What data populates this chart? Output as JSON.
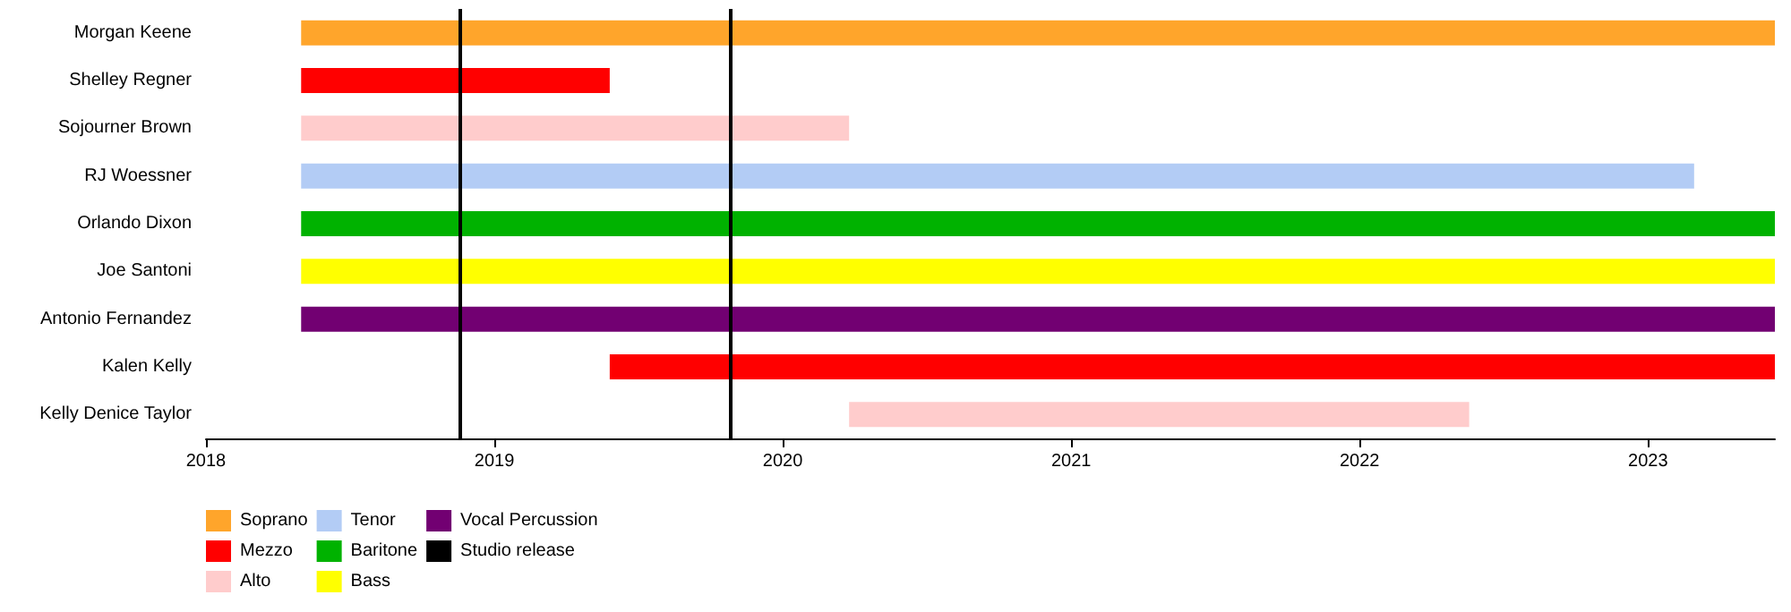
{
  "chart_data": {
    "type": "bar",
    "orientation": "horizontal",
    "categories": [
      "Morgan Keene",
      "Shelley Regner",
      "Sojourner Brown",
      "RJ Woessner",
      "Orlando Dixon",
      "Joe Santoni",
      "Antonio Fernandez",
      "Kalen Kelly",
      "Kelly Denice Taylor"
    ],
    "series": [
      {
        "name": "Soprano",
        "color": "#ffa52b",
        "values": [
          5.11,
          null,
          null,
          null,
          null,
          null,
          null,
          null,
          null
        ],
        "base": [
          2018.33,
          null,
          null,
          null,
          null,
          null,
          null,
          null,
          null
        ]
      },
      {
        "name": "Mezzo",
        "color": "#ff0000",
        "values": [
          null,
          1.07,
          null,
          null,
          null,
          null,
          null,
          4.04,
          null
        ],
        "base": [
          null,
          2018.33,
          null,
          null,
          null,
          null,
          null,
          2019.4,
          null
        ]
      },
      {
        "name": "Alto",
        "color": "#ffcccc",
        "values": [
          null,
          null,
          1.9,
          null,
          null,
          null,
          null,
          null,
          2.15
        ],
        "base": [
          null,
          null,
          2018.33,
          null,
          null,
          null,
          null,
          null,
          2020.23
        ]
      },
      {
        "name": "Tenor",
        "color": "#b3ccf5",
        "values": [
          null,
          null,
          null,
          4.83,
          null,
          null,
          null,
          null,
          null
        ],
        "base": [
          null,
          null,
          null,
          2018.33,
          null,
          null,
          null,
          null,
          null
        ]
      },
      {
        "name": "Baritone",
        "color": "#00b200",
        "values": [
          null,
          null,
          null,
          null,
          5.11,
          null,
          null,
          null,
          null
        ],
        "base": [
          null,
          null,
          null,
          null,
          2018.33,
          null,
          null,
          null,
          null
        ]
      },
      {
        "name": "Bass",
        "color": "#ffff00",
        "values": [
          null,
          null,
          null,
          null,
          null,
          5.11,
          null,
          null,
          null
        ],
        "base": [
          null,
          null,
          null,
          null,
          null,
          2018.33,
          null,
          null,
          null
        ]
      },
      {
        "name": "Vocal Percussion",
        "color": "#720072",
        "values": [
          null,
          null,
          null,
          null,
          null,
          null,
          5.11,
          null,
          null
        ],
        "base": [
          null,
          null,
          null,
          null,
          null,
          null,
          2018.33,
          null,
          null
        ]
      }
    ],
    "xlim": [
      2018,
      2023.44
    ],
    "xticks": [
      2018,
      2019,
      2020,
      2021,
      2022,
      2023
    ],
    "ref_lines": [
      {
        "axis": "x",
        "value": 2018.88,
        "label": "Studio release",
        "color": "#000000"
      },
      {
        "axis": "x",
        "value": 2019.82,
        "color": "#000000"
      }
    ],
    "legend": "bottom",
    "grid": false
  }
}
